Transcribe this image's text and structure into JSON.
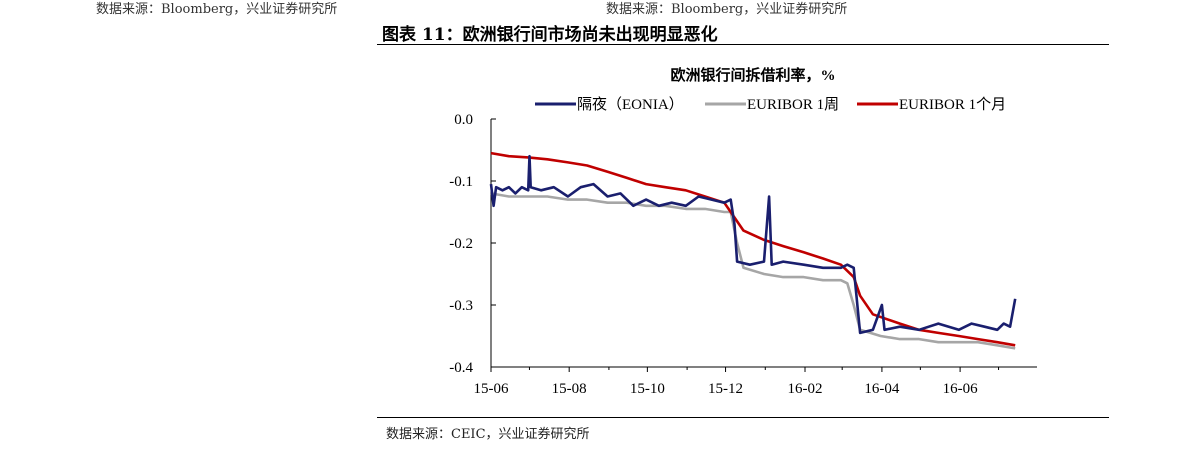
{
  "page": {
    "source_top_left": "数据来源：Bloomberg，兴业证券研究所",
    "source_top_right": "数据来源：Bloomberg，兴业证券研究所",
    "figure_title": "图表 11：欧洲银行间市场尚未出现明显恶化",
    "figure_source": "数据来源：CEIC，兴业证券研究所"
  },
  "chart_data": {
    "type": "line",
    "title": "欧洲银行间拆借利率，%",
    "xlabel": "",
    "ylabel": "",
    "ylim": [
      -0.4,
      0.0
    ],
    "yticks": [
      0.0,
      -0.1,
      -0.2,
      -0.3,
      -0.4
    ],
    "ytick_labels": [
      "0.0",
      "-0.1",
      "-0.2",
      "-0.3",
      "-0.4"
    ],
    "xlim": [
      "2015-06-01",
      "2016-07-31"
    ],
    "xticks": [
      "2015-06-01",
      "2015-08-01",
      "2015-10-01",
      "2015-12-01",
      "2016-02-01",
      "2016-04-01",
      "2016-06-01"
    ],
    "xtick_labels": [
      "15-06",
      "15-08",
      "15-10",
      "15-12",
      "16-02",
      "16-04",
      "16-06"
    ],
    "legend_position": "top",
    "grid": false,
    "series": [
      {
        "name": "隔夜（EONIA）",
        "color": "#1a1f6e",
        "points": [
          [
            "2015-06-01",
            -0.105
          ],
          [
            "2015-06-03",
            -0.14
          ],
          [
            "2015-06-05",
            -0.11
          ],
          [
            "2015-06-10",
            -0.115
          ],
          [
            "2015-06-15",
            -0.11
          ],
          [
            "2015-06-20",
            -0.12
          ],
          [
            "2015-06-25",
            -0.11
          ],
          [
            "2015-06-30",
            -0.115
          ],
          [
            "2015-07-01",
            -0.06
          ],
          [
            "2015-07-02",
            -0.11
          ],
          [
            "2015-07-10",
            -0.115
          ],
          [
            "2015-07-20",
            -0.11
          ],
          [
            "2015-07-31",
            -0.125
          ],
          [
            "2015-08-10",
            -0.11
          ],
          [
            "2015-08-20",
            -0.105
          ],
          [
            "2015-08-31",
            -0.125
          ],
          [
            "2015-09-10",
            -0.12
          ],
          [
            "2015-09-20",
            -0.14
          ],
          [
            "2015-09-30",
            -0.13
          ],
          [
            "2015-10-10",
            -0.14
          ],
          [
            "2015-10-20",
            -0.135
          ],
          [
            "2015-10-31",
            -0.14
          ],
          [
            "2015-11-10",
            -0.125
          ],
          [
            "2015-11-20",
            -0.13
          ],
          [
            "2015-11-30",
            -0.135
          ],
          [
            "2015-12-05",
            -0.13
          ],
          [
            "2015-12-08",
            -0.17
          ],
          [
            "2015-12-10",
            -0.23
          ],
          [
            "2015-12-20",
            -0.235
          ],
          [
            "2015-12-31",
            -0.23
          ],
          [
            "2016-01-04",
            -0.125
          ],
          [
            "2016-01-06",
            -0.235
          ],
          [
            "2016-01-15",
            -0.23
          ],
          [
            "2016-01-31",
            -0.235
          ],
          [
            "2016-02-15",
            -0.24
          ],
          [
            "2016-02-29",
            -0.24
          ],
          [
            "2016-03-05",
            -0.235
          ],
          [
            "2016-03-10",
            -0.24
          ],
          [
            "2016-03-15",
            -0.345
          ],
          [
            "2016-03-25",
            -0.34
          ],
          [
            "2016-04-01",
            -0.3
          ],
          [
            "2016-04-03",
            -0.34
          ],
          [
            "2016-04-15",
            -0.335
          ],
          [
            "2016-04-30",
            -0.34
          ],
          [
            "2016-05-15",
            -0.33
          ],
          [
            "2016-05-31",
            -0.34
          ],
          [
            "2016-06-10",
            -0.33
          ],
          [
            "2016-06-20",
            -0.335
          ],
          [
            "2016-06-30",
            -0.34
          ],
          [
            "2016-07-05",
            -0.33
          ],
          [
            "2016-07-10",
            -0.335
          ],
          [
            "2016-07-14",
            -0.29
          ]
        ]
      },
      {
        "name": "EURIBOR 1周",
        "color": "#a6a6a6",
        "points": [
          [
            "2015-06-01",
            -0.12
          ],
          [
            "2015-06-15",
            -0.125
          ],
          [
            "2015-06-30",
            -0.125
          ],
          [
            "2015-07-15",
            -0.125
          ],
          [
            "2015-07-31",
            -0.13
          ],
          [
            "2015-08-15",
            -0.13
          ],
          [
            "2015-08-31",
            -0.135
          ],
          [
            "2015-09-15",
            -0.135
          ],
          [
            "2015-09-30",
            -0.14
          ],
          [
            "2015-10-15",
            -0.14
          ],
          [
            "2015-10-31",
            -0.145
          ],
          [
            "2015-11-15",
            -0.145
          ],
          [
            "2015-11-30",
            -0.15
          ],
          [
            "2015-12-05",
            -0.15
          ],
          [
            "2015-12-10",
            -0.2
          ],
          [
            "2015-12-15",
            -0.24
          ],
          [
            "2015-12-31",
            -0.25
          ],
          [
            "2016-01-15",
            -0.255
          ],
          [
            "2016-01-31",
            -0.255
          ],
          [
            "2016-02-15",
            -0.26
          ],
          [
            "2016-02-29",
            -0.26
          ],
          [
            "2016-03-05",
            -0.265
          ],
          [
            "2016-03-10",
            -0.3
          ],
          [
            "2016-03-15",
            -0.34
          ],
          [
            "2016-03-31",
            -0.35
          ],
          [
            "2016-04-15",
            -0.355
          ],
          [
            "2016-04-30",
            -0.355
          ],
          [
            "2016-05-15",
            -0.36
          ],
          [
            "2016-05-31",
            -0.36
          ],
          [
            "2016-06-15",
            -0.36
          ],
          [
            "2016-06-30",
            -0.365
          ],
          [
            "2016-07-14",
            -0.37
          ]
        ]
      },
      {
        "name": "EURIBOR 1个月",
        "color": "#c00000",
        "points": [
          [
            "2015-06-01",
            -0.055
          ],
          [
            "2015-06-15",
            -0.06
          ],
          [
            "2015-06-30",
            -0.062
          ],
          [
            "2015-07-15",
            -0.065
          ],
          [
            "2015-07-31",
            -0.07
          ],
          [
            "2015-08-15",
            -0.075
          ],
          [
            "2015-08-31",
            -0.085
          ],
          [
            "2015-09-15",
            -0.095
          ],
          [
            "2015-09-30",
            -0.105
          ],
          [
            "2015-10-15",
            -0.11
          ],
          [
            "2015-10-31",
            -0.115
          ],
          [
            "2015-11-15",
            -0.125
          ],
          [
            "2015-11-30",
            -0.135
          ],
          [
            "2015-12-05",
            -0.15
          ],
          [
            "2015-12-15",
            -0.18
          ],
          [
            "2015-12-31",
            -0.195
          ],
          [
            "2016-01-15",
            -0.205
          ],
          [
            "2016-01-31",
            -0.215
          ],
          [
            "2016-02-15",
            -0.225
          ],
          [
            "2016-02-29",
            -0.235
          ],
          [
            "2016-03-10",
            -0.255
          ],
          [
            "2016-03-15",
            -0.285
          ],
          [
            "2016-03-25",
            -0.315
          ],
          [
            "2016-04-15",
            -0.33
          ],
          [
            "2016-04-30",
            -0.34
          ],
          [
            "2016-05-15",
            -0.345
          ],
          [
            "2016-05-31",
            -0.35
          ],
          [
            "2016-06-15",
            -0.355
          ],
          [
            "2016-06-30",
            -0.36
          ],
          [
            "2016-07-14",
            -0.365
          ]
        ]
      }
    ]
  }
}
